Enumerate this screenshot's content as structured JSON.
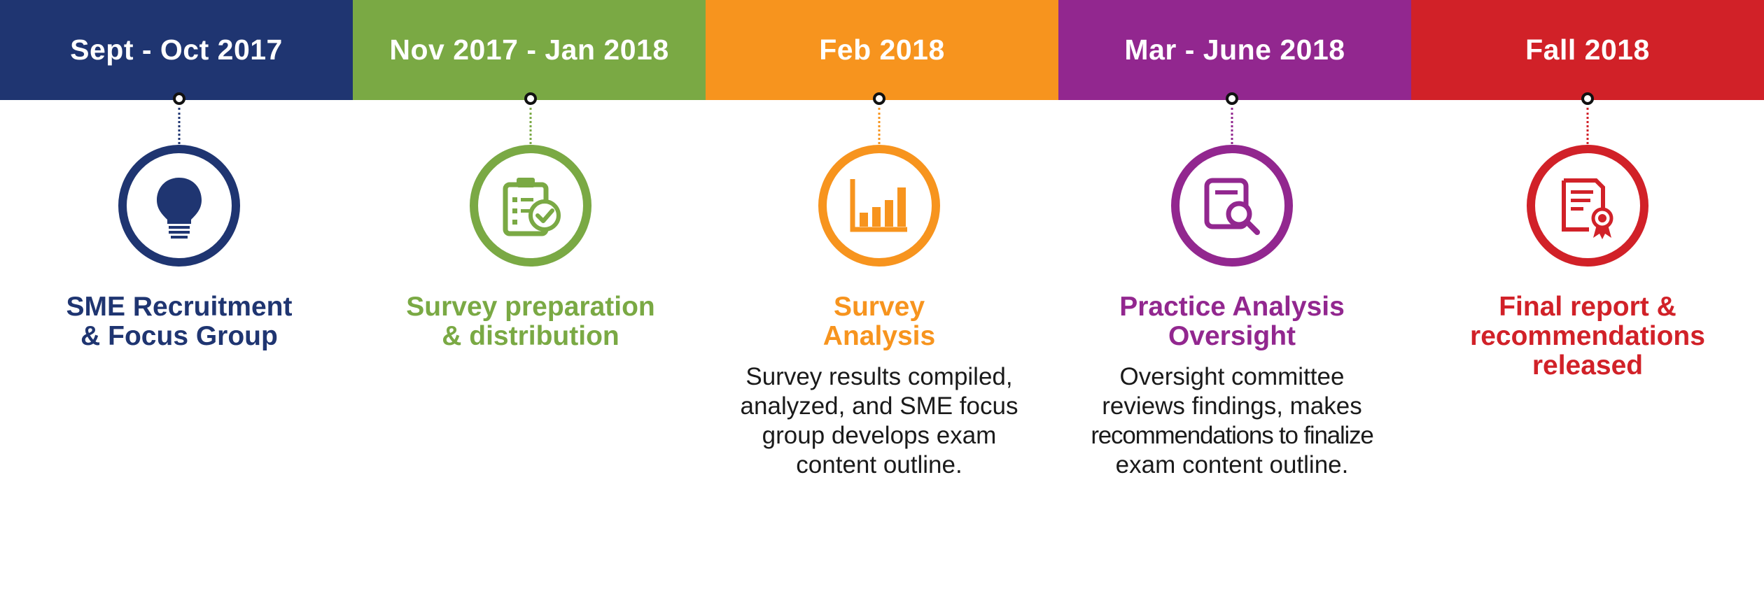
{
  "phases": [
    {
      "date": "Sept - Oct 2017",
      "title_line1": "SME Recruitment",
      "title_line2": "& Focus Group",
      "title_line3": "",
      "desc_lines": [],
      "color": "#1f3571",
      "icon": "lightbulb-icon"
    },
    {
      "date": "Nov 2017 - Jan 2018",
      "title_line1": "Survey preparation",
      "title_line2": "& distribution",
      "title_line3": "",
      "desc_lines": [],
      "color": "#7aa944",
      "icon": "clipboard-check-icon"
    },
    {
      "date": "Feb 2018",
      "title_line1": "Survey",
      "title_line2": "Analysis",
      "title_line3": "",
      "desc_lines": [
        "Survey results compiled,",
        "analyzed, and SME focus",
        "group develops exam",
        "content outline."
      ],
      "color": "#f7941e",
      "icon": "bar-chart-icon"
    },
    {
      "date": "Mar - June 2018",
      "title_line1": "Practice Analysis",
      "title_line2": "Oversight",
      "title_line3": "",
      "desc_lines": [
        "Oversight committee",
        "reviews findings, makes",
        "recommendations to finalize",
        "exam content outline."
      ],
      "color": "#92278f",
      "icon": "document-search-icon"
    },
    {
      "date": "Fall 2018",
      "title_line1": "Final report &",
      "title_line2": "recommendations",
      "title_line3": "released",
      "desc_lines": [],
      "color": "#d12128",
      "icon": "certificate-icon"
    }
  ]
}
